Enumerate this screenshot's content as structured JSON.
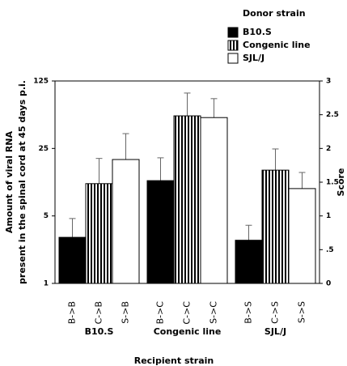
{
  "chart_data": {
    "type": "bar",
    "legend_title": "Donor strain",
    "y_label": [
      "Amount of viral RNA",
      "present in the spinal cord at 45 days p.i."
    ],
    "y2_label": "Score",
    "x_label": "Recipient strain",
    "categories": [
      "B10.S",
      "Congenic line",
      "SJL/J"
    ],
    "log_y": true,
    "ylim": [
      1,
      125
    ],
    "yticks": [
      1,
      5,
      25,
      125
    ],
    "y2lim": [
      0,
      3
    ],
    "y2ticks": [
      0,
      {
        "value": 0.5,
        "label": ".5"
      },
      1,
      1.5,
      2,
      2.5,
      3
    ],
    "series": [
      {
        "name": "B10.S",
        "color": "#000000",
        "pattern": "solid",
        "labels": [
          "B->B",
          "B->C",
          "B->S"
        ],
        "values": [
          3.0,
          11.6,
          2.8
        ],
        "errors": [
          1.7,
          8.4,
          1.2
        ]
      },
      {
        "name": "Congenic line",
        "color": "#ffffff",
        "pattern": "vertical-stripes",
        "labels": [
          "C->B",
          "C->C",
          "C->S"
        ],
        "values": [
          10.8,
          54.4,
          14.9
        ],
        "errors": [
          8.9,
          39.3,
          9.8
        ]
      },
      {
        "name": "SJL/J",
        "color": "#ffffff",
        "pattern": "solid",
        "labels": [
          "S->B",
          "S->C",
          "S->S"
        ],
        "values": [
          19.2,
          52.2,
          9.6
        ],
        "errors": [
          16.4,
          29.8,
          4.5
        ]
      }
    ]
  }
}
